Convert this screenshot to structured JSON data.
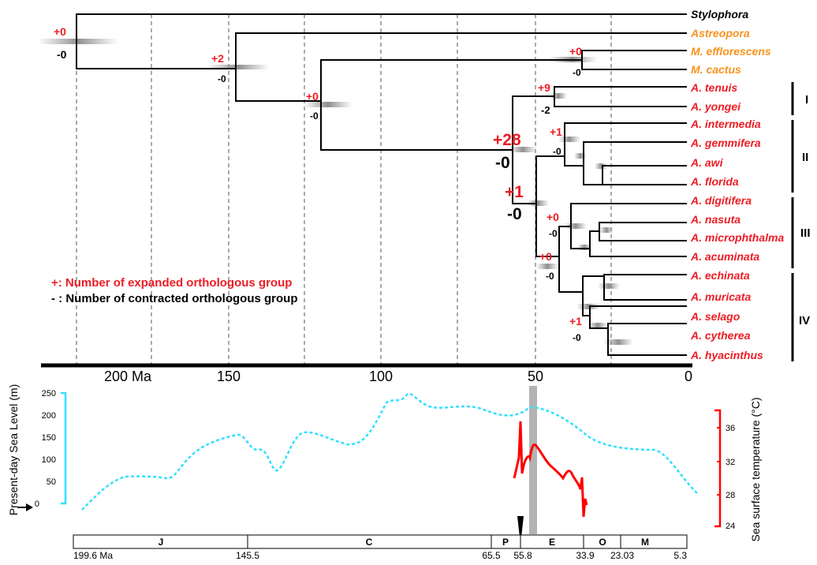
{
  "tree": {
    "taxa": [
      {
        "id": "stylophora",
        "label": "Stylophora",
        "color": "#000000"
      },
      {
        "id": "astreopora",
        "label": "Astreopora",
        "color": "#f7941d"
      },
      {
        "id": "m-efflorescens",
        "label": "M. efflorescens",
        "color": "#f7941d"
      },
      {
        "id": "m-cactus",
        "label": "M. cactus",
        "color": "#f7941d"
      },
      {
        "id": "a-tenuis",
        "label": "A. tenuis",
        "color": "#ed1c24"
      },
      {
        "id": "a-yongei",
        "label": "A. yongei",
        "color": "#ed1c24"
      },
      {
        "id": "a-intermedia",
        "label": "A. intermedia",
        "color": "#ed1c24"
      },
      {
        "id": "a-gemmifera",
        "label": "A. gemmifera",
        "color": "#ed1c24"
      },
      {
        "id": "a-awi",
        "label": "A. awi",
        "color": "#ed1c24"
      },
      {
        "id": "a-florida",
        "label": "A. florida",
        "color": "#ed1c24"
      },
      {
        "id": "a-digitifera",
        "label": "A. digitifera",
        "color": "#ed1c24"
      },
      {
        "id": "a-nasuta",
        "label": "A. nasuta",
        "color": "#ed1c24"
      },
      {
        "id": "a-microphthalma",
        "label": "A. microphthalma",
        "color": "#ed1c24"
      },
      {
        "id": "a-acuminata",
        "label": "A. acuminata",
        "color": "#ed1c24"
      },
      {
        "id": "a-echinata",
        "label": "A. echinata",
        "color": "#ed1c24"
      },
      {
        "id": "a-muricata",
        "label": "A. muricata",
        "color": "#ed1c24"
      },
      {
        "id": "a-selago",
        "label": "A. selago",
        "color": "#ed1c24"
      },
      {
        "id": "a-cytherea",
        "label": "A. cytherea",
        "color": "#ed1c24"
      },
      {
        "id": "a-hyacinthus",
        "label": "A. hyacinthus",
        "color": "#ed1c24"
      }
    ],
    "node_labels": [
      {
        "id": "root",
        "plus": "+0",
        "minus": "-0"
      },
      {
        "id": "n2",
        "plus": "+2",
        "minus": "-0"
      },
      {
        "id": "n3",
        "plus": "+0",
        "minus": "-0"
      },
      {
        "id": "montipora",
        "plus": "+0",
        "minus": "-0"
      },
      {
        "id": "clade-i",
        "plus": "+9",
        "minus": "-2"
      },
      {
        "id": "acropora",
        "plus": "+28",
        "minus": "-0"
      },
      {
        "id": "clade-ii",
        "plus": "+1",
        "minus": "-0"
      },
      {
        "id": "clade-iii-iv",
        "plus": "+1",
        "minus": "-0"
      },
      {
        "id": "clade-iii",
        "plus": "+0",
        "minus": "-0"
      },
      {
        "id": "clade-iv",
        "plus": "+0",
        "minus": "-0"
      },
      {
        "id": "clade-iv-sub",
        "plus": "+1",
        "minus": "-0"
      }
    ],
    "clades": [
      "I",
      "II",
      "III",
      "IV"
    ],
    "legend": {
      "expanded": "+: Number of expanded orthologous group",
      "contracted": "- : Number of contracted orthologous group"
    },
    "axis_ticks": [
      "200 Ma",
      "150",
      "100",
      "50",
      "0"
    ]
  },
  "sea_level": {
    "ylabel": "Present-day Sea Level (m)",
    "ticks": [
      "250",
      "200",
      "150",
      "100",
      "50",
      "0"
    ],
    "color": "#33e0ff"
  },
  "sst": {
    "ylabel": "Sea surface temperature (°C)",
    "ticks": [
      "36",
      "32",
      "28",
      "24"
    ],
    "color": "#ff0000"
  },
  "timescale": {
    "periods": [
      "J",
      "C",
      "P",
      "E",
      "O",
      "M"
    ],
    "boundaries": [
      "199.6 Ma",
      "145.5",
      "65.5",
      "55.8",
      "33.9",
      "23.03",
      "5.3"
    ]
  }
}
